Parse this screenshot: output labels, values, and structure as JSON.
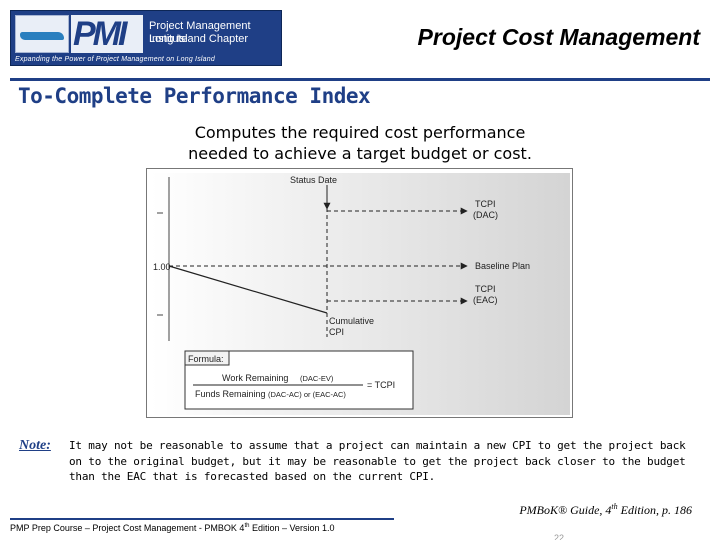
{
  "header": {
    "logo_abbrev": "PMI",
    "logo_name_line1": "Project Management Institute",
    "logo_name_line2": "Long Island Chapter",
    "logo_tagline": "Expanding the Power of Project Management on Long Island",
    "title": "Project Cost Management"
  },
  "slide": {
    "subtitle": "To-Complete Performance Index",
    "description_line1": "Computes the required cost performance",
    "description_line2": "needed to achieve a target budget or cost."
  },
  "figure": {
    "status_date_label": "Status Date",
    "y_value_label": "1.00",
    "tcpi_dac_line1": "TCPI",
    "tcpi_dac_line2": "(DAC)",
    "baseline_label": "Baseline Plan",
    "tcpi_eac_line1": "TCPI",
    "tcpi_eac_line2": "(EAC)",
    "cumulative_cpi_line1": "Cumulative",
    "cumulative_cpi_line2": "CPI",
    "formula_header": "Formula:",
    "formula_numerator": "Work Remaining",
    "formula_numerator_detail": "(DAC-EV)",
    "formula_denominator": "Funds Remaining",
    "formula_denominator_detail": "(DAC-AC) or (EAC-AC)",
    "formula_result": "= TCPI"
  },
  "note": {
    "label": "Note:",
    "text": "It may not be reasonable to assume that a project can maintain a new CPI to get the project back on to the original budget, but it may be reasonable to get the project back closer to the budget than the EAC that is forecasted based on the current CPI."
  },
  "citation": {
    "prefix": "PMBoK® Guide, 4",
    "sup": "th",
    "suffix": " Edition, p. 186"
  },
  "footer": {
    "prefix": "PMP Prep Course – Project Cost Management - PMBOK 4",
    "sup": "th",
    "suffix": " Edition – Version 1.0",
    "page_number": "22"
  },
  "colors": {
    "brand_blue": "#1f3f86"
  }
}
